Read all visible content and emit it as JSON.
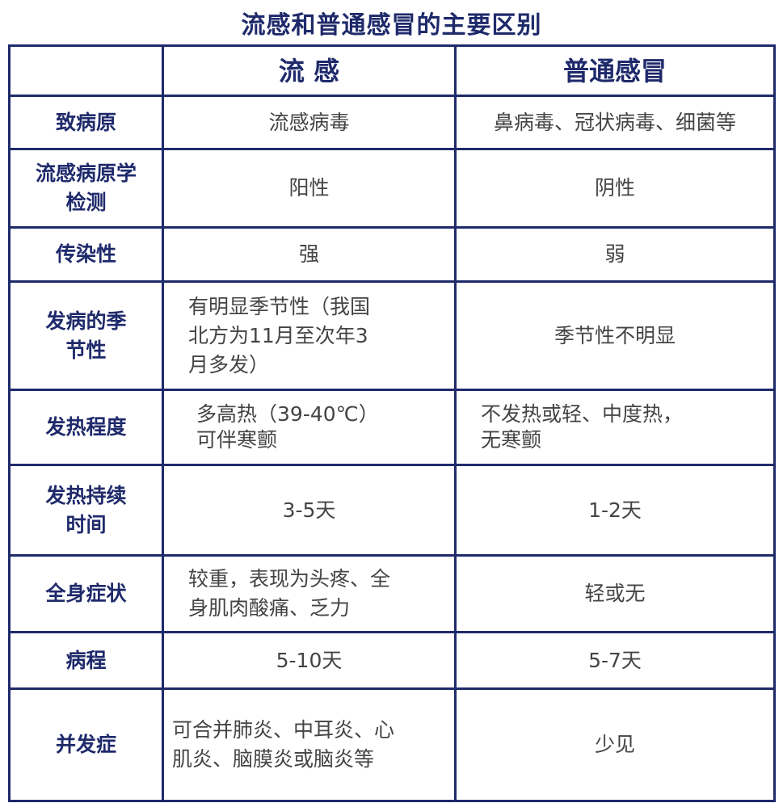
{
  "title": "流感和普通感冒的主要区别",
  "columns": [
    "",
    "流 感",
    "普通感冒"
  ],
  "rows": [
    {
      "label": "致病原",
      "flu": "流感病毒",
      "cold": "鼻病毒、冠状病毒、细菌等"
    },
    {
      "label": "流感病原学\n检测",
      "flu": "阳性",
      "cold": "阴性"
    },
    {
      "label": "传染性",
      "flu": "强",
      "cold": "弱"
    },
    {
      "label": "发病的季\n节性",
      "flu": "有明显季节性（我国\n北方为11月至次年3\n月多发）",
      "cold": "季节性不明显"
    },
    {
      "label": "发热程度",
      "flu": "多高热（39-40℃）\n可伴寒颤",
      "cold": "不发热或轻、中度热，\n无寒颤"
    },
    {
      "label": "发热持续\n时间",
      "flu": "3-5天",
      "cold": "1-2天"
    },
    {
      "label": "全身症状",
      "flu": "较重，表现为头疼、全\n身肌肉酸痛、乏力",
      "cold": "轻或无"
    },
    {
      "label": "病程",
      "flu": "5-10天",
      "cold": "5-7天"
    },
    {
      "label": "并发症",
      "flu": "可合并肺炎、中耳炎、心\n肌炎、脑膜炎或脑炎等",
      "cold": "少见"
    }
  ],
  "colors": {
    "accent": "#1f2a6b",
    "text": "#444444"
  }
}
